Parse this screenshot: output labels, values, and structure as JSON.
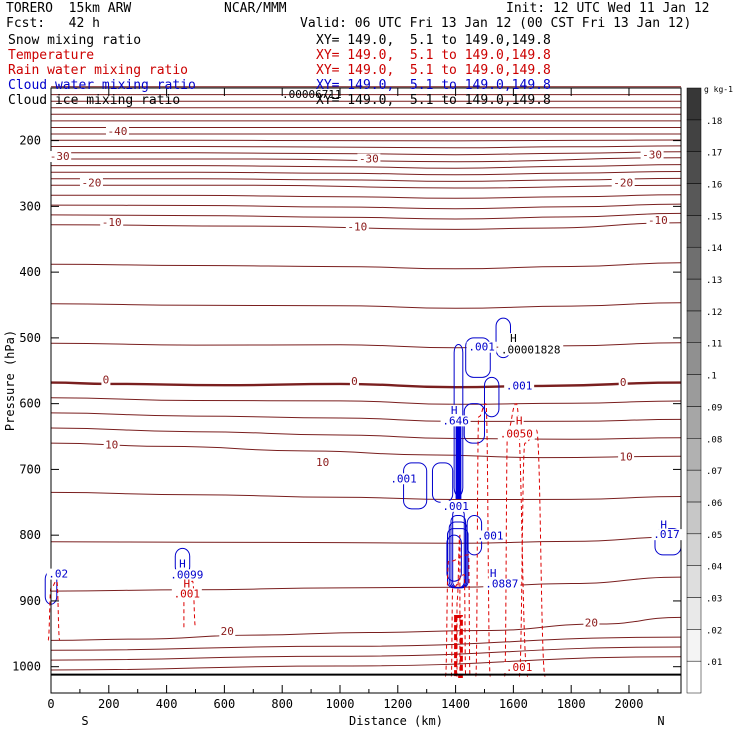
{
  "header": {
    "model": "TORERO  15km ARW",
    "center": "NCAR/MMM",
    "init": "Init: 12 UTC Wed 11 Jan 12",
    "fcst": "Fcst:   42 h",
    "valid": "Valid: 06 UTC Fri 13 Jan 12 (00 CST Fri 13 Jan 12)"
  },
  "fields": [
    {
      "name": "Snow mixing ratio",
      "xy": "",
      "color": "#000000"
    },
    {
      "name": "Temperature",
      "xy": "XY= 149.0,  5.1 to 149.0,149.8",
      "color": "#cc0000"
    },
    {
      "name": "Rain water mixing ratio",
      "xy": "XY= 149.0,  5.1 to 149.0,149.8",
      "color": "#cc0000"
    },
    {
      "name": "Cloud water mixing ratio",
      "xy": "XY= 149.0,  5.1 to 149.0,149.8",
      "color": "#0000cc"
    },
    {
      "name": "Cloud ice mixing ratio",
      "xy": "XY= 149.0,  5.1 to 149.0,149.8",
      "color": "#000000"
    }
  ],
  "snow_xy": "XY= 149.0,  5.1 to 149.0,149.8",
  "top_label": ".00006711",
  "colorbar": {
    "unit": "g kg-1",
    "ticks": [
      ".01",
      ".02",
      ".03",
      ".04",
      ".05",
      ".06",
      ".07",
      ".08",
      ".09",
      ".1",
      ".11",
      ".12",
      ".13",
      ".14",
      ".15",
      ".16",
      ".17",
      ".18"
    ]
  },
  "chart_data": {
    "type": "contour",
    "xlabel": "Distance (km)",
    "ylabel": "Pressure (hPa)",
    "xlim": [
      0,
      2180
    ],
    "ylim": [
      1040,
      120
    ],
    "xticks": [
      0,
      200,
      400,
      600,
      800,
      1000,
      1200,
      1400,
      1600,
      1800,
      2000
    ],
    "yticks": [
      200,
      300,
      400,
      500,
      600,
      700,
      800,
      900,
      1000
    ],
    "x_end_labels": {
      "left": "S",
      "right": "N"
    },
    "surface_pressure": 1012,
    "temperature_isotherms": [
      {
        "label": "-40",
        "x": [
          0,
          2180
        ],
        "p": [
          190,
          190
        ]
      },
      {
        "label": "-30",
        "x": [
          0,
          700,
          1400,
          2180
        ],
        "p": [
          228,
          228,
          232,
          226
        ]
      },
      {
        "label": "-20",
        "x": [
          0,
          700,
          1400,
          2180
        ],
        "p": [
          268,
          268,
          272,
          268
        ]
      },
      {
        "label": "-10",
        "x": [
          0,
          700,
          1400,
          1700,
          2180
        ],
        "p": [
          328,
          330,
          335,
          333,
          325
        ]
      },
      {
        "label": "0",
        "x": [
          0,
          200,
          600,
          1000,
          1400,
          1700,
          2180
        ],
        "p": [
          568,
          570,
          572,
          570,
          575,
          573,
          568
        ]
      },
      {
        "label": "10",
        "x": [
          0,
          400,
          900,
          1300,
          1700,
          2180
        ],
        "p": [
          660,
          665,
          672,
          678,
          682,
          680
        ]
      },
      {
        "label": "20",
        "x": [
          0,
          300,
          700,
          1100,
          1500,
          1900,
          2180
        ],
        "p": [
          960,
          958,
          952,
          948,
          945,
          935,
          925
        ]
      }
    ],
    "extra_labels": [
      {
        "text": "-40",
        "x": 230,
        "p": 190,
        "color": "#8b1a1a"
      },
      {
        "text": "-30",
        "x": 30,
        "p": 228,
        "color": "#8b1a1a"
      },
      {
        "text": "-30",
        "x": 1100,
        "p": 232,
        "color": "#8b1a1a"
      },
      {
        "text": "-30",
        "x": 2080,
        "p": 226,
        "color": "#8b1a1a"
      },
      {
        "text": "-20",
        "x": 140,
        "p": 268,
        "color": "#8b1a1a"
      },
      {
        "text": "-20",
        "x": 1980,
        "p": 268,
        "color": "#8b1a1a"
      },
      {
        "text": "-10",
        "x": 210,
        "p": 328,
        "color": "#8b1a1a"
      },
      {
        "text": "-10",
        "x": 1060,
        "p": 335,
        "color": "#8b1a1a"
      },
      {
        "text": "-10",
        "x": 2100,
        "p": 325,
        "color": "#8b1a1a"
      },
      {
        "text": "0",
        "x": 190,
        "p": 568,
        "color": "#8b1a1a"
      },
      {
        "text": "0",
        "x": 1050,
        "p": 570,
        "color": "#8b1a1a"
      },
      {
        "text": "0",
        "x": 1980,
        "p": 572,
        "color": "#8b1a1a"
      },
      {
        "text": "10",
        "x": 210,
        "p": 667,
        "color": "#8b1a1a"
      },
      {
        "text": "10",
        "x": 940,
        "p": 693,
        "color": "#8b1a1a"
      },
      {
        "text": "10",
        "x": 1990,
        "p": 685,
        "color": "#8b1a1a"
      },
      {
        "text": "20",
        "x": 610,
        "p": 950,
        "color": "#8b1a1a"
      },
      {
        "text": "20",
        "x": 1870,
        "p": 937,
        "color": "#8b1a1a"
      },
      {
        "text": ".001",
        "x": 1220,
        "p": 718,
        "color": "#0000cc"
      },
      {
        "text": ".001",
        "x": 1490,
        "p": 518,
        "color": "#0000cc"
      },
      {
        "text": ".001",
        "x": 1620,
        "p": 577,
        "color": "#0000cc"
      },
      {
        "text": ".001",
        "x": 1520,
        "p": 805,
        "color": "#0000cc"
      },
      {
        "text": ".001",
        "x": 470,
        "p": 893,
        "color": "#cc0000"
      },
      {
        "text": ".0050",
        "x": 1610,
        "p": 650,
        "color": "#cc0000"
      },
      {
        "text": ".001",
        "x": 1620,
        "p": 1005,
        "color": "#cc0000"
      },
      {
        "text": "H",
        "x": 1600,
        "p": 505,
        "color": "#000000"
      },
      {
        "text": ".00001828",
        "x": 1660,
        "p": 522,
        "color": "#000000"
      },
      {
        "text": "H",
        "x": 1395,
        "p": 614,
        "color": "#0000cc"
      },
      {
        "text": ".646",
        "x": 1400,
        "p": 630,
        "color": "#0000cc"
      },
      {
        "text": ".001",
        "x": 1400,
        "p": 760,
        "color": "#0000cc"
      },
      {
        "text": "H",
        "x": 1620,
        "p": 630,
        "color": "#cc0000"
      },
      {
        "text": "H",
        "x": 1530,
        "p": 862,
        "color": "#0000cc"
      },
      {
        "text": ".0887",
        "x": 1560,
        "p": 878,
        "color": "#0000cc"
      },
      {
        "text": "H",
        "x": 455,
        "p": 848,
        "color": "#0000cc"
      },
      {
        "text": ".0099",
        "x": 470,
        "p": 864,
        "color": "#0000cc"
      },
      {
        "text": "H",
        "x": 470,
        "p": 878,
        "color": "#cc0000"
      },
      {
        "text": ".02",
        "x": 25,
        "p": 863,
        "color": "#0000cc"
      },
      {
        "text": "H",
        "x": 2120,
        "p": 788,
        "color": "#0000cc"
      },
      {
        "text": ".017",
        "x": 2130,
        "p": 803,
        "color": "#0000cc"
      }
    ],
    "cloud_water_max_x": 1410,
    "rain_max_x": 1410
  }
}
